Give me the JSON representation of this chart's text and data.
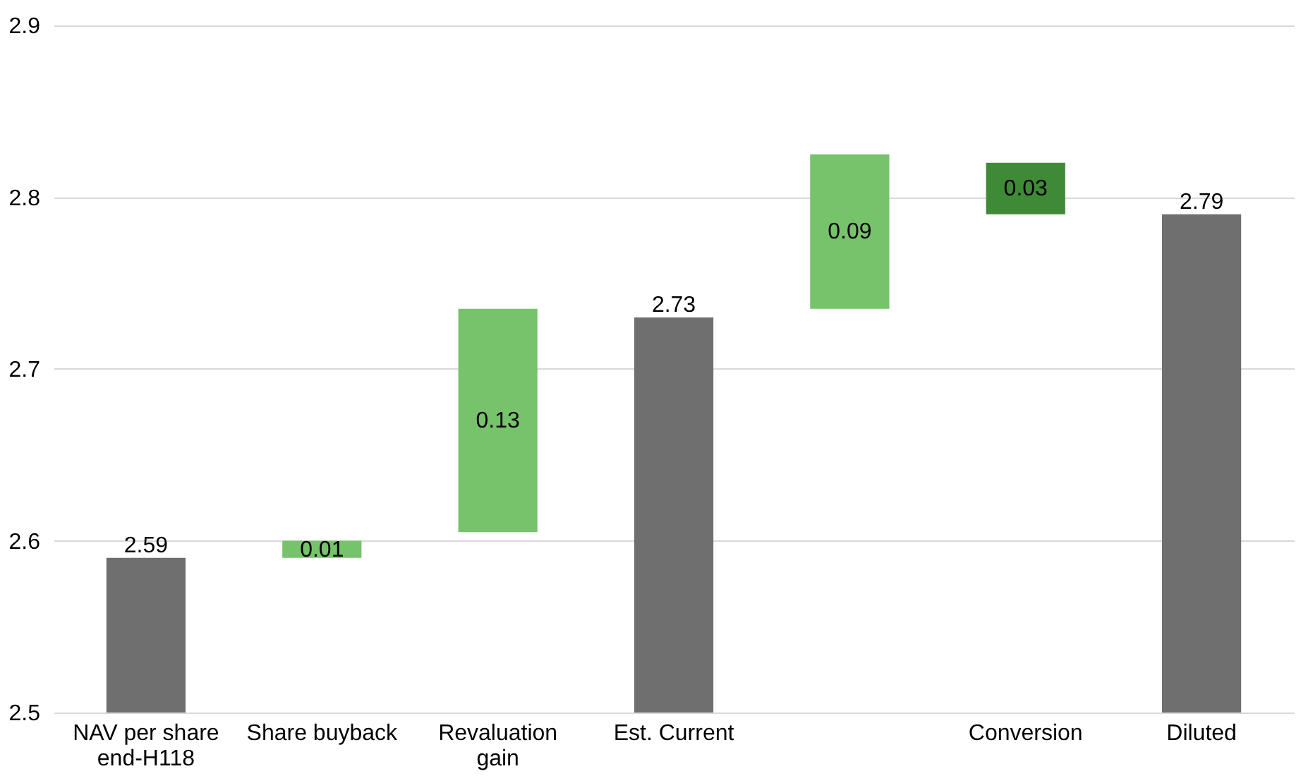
{
  "chart_data": {
    "type": "bar",
    "categories": [
      "NAV per share end-H118",
      "Share buyback",
      "Revaluation gain",
      "Est. Current",
      null,
      "Conversion",
      "Diluted"
    ],
    "values": [
      2.59,
      0.01,
      0.13,
      2.73,
      0.09,
      0.03,
      2.79
    ],
    "base": [
      null,
      2.59,
      2.605,
      null,
      2.735,
      2.79,
      null
    ],
    "colors": [
      "#6f6f6f",
      "#77c36b",
      "#77c36b",
      "#6f6f6f",
      "#77c36b",
      "#3f8a37",
      "#6f6f6f"
    ],
    "ylim": [
      2.5,
      2.9
    ],
    "yticks": [
      2.5,
      2.6,
      2.7,
      2.8,
      2.9
    ],
    "data_labels": true,
    "grid": "y"
  }
}
